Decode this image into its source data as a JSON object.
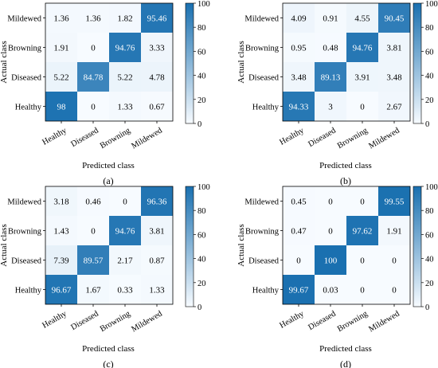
{
  "chart_data": [
    {
      "type": "heatmap",
      "panel_label": "(a)",
      "rows": [
        "Mildewed",
        "Browning",
        "Diseased",
        "Healthy"
      ],
      "columns": [
        "Healthy",
        "Diseased",
        "Browning",
        "Mildewed"
      ],
      "values": [
        [
          "1.36",
          "1.36",
          "1.82",
          "95.46"
        ],
        [
          "1.91",
          "0",
          "94.76",
          "3.33"
        ],
        [
          "5.22",
          "84.78",
          "5.22",
          "4.78"
        ],
        [
          "98",
          "0",
          "1.33",
          "0.67"
        ]
      ],
      "xlabel": "Predicted class",
      "ylabel": "Actual class",
      "colorbar": {
        "range": [
          0,
          100
        ],
        "ticks": [
          "0",
          "20",
          "40",
          "60",
          "80",
          "100"
        ]
      }
    },
    {
      "type": "heatmap",
      "panel_label": "(b)",
      "rows": [
        "Mildewed",
        "Browning",
        "Diseased",
        "Healthy"
      ],
      "columns": [
        "Healthy",
        "Diseased",
        "Browning",
        "Mildewed"
      ],
      "values": [
        [
          "4.09",
          "0.91",
          "4.55",
          "90.45"
        ],
        [
          "0.95",
          "0.48",
          "94.76",
          "3.81"
        ],
        [
          "3.48",
          "89.13",
          "3.91",
          "3.48"
        ],
        [
          "94.33",
          "3",
          "0",
          "2.67"
        ]
      ],
      "xlabel": "Predicted class",
      "ylabel": "Actual class",
      "colorbar": {
        "range": [
          0,
          100
        ],
        "ticks": [
          "0",
          "20",
          "40",
          "60",
          "80",
          "100"
        ]
      }
    },
    {
      "type": "heatmap",
      "panel_label": "(c)",
      "rows": [
        "Mildewed",
        "Browning",
        "Diseased",
        "Healthy"
      ],
      "columns": [
        "Healthy",
        "Diseased",
        "Browning",
        "Mildewed"
      ],
      "values": [
        [
          "3.18",
          "0.46",
          "0",
          "96.36"
        ],
        [
          "1.43",
          "0",
          "94.76",
          "3.81"
        ],
        [
          "7.39",
          "89.57",
          "2.17",
          "0.87"
        ],
        [
          "96.67",
          "1.67",
          "0.33",
          "1.33"
        ]
      ],
      "xlabel": "Predicted class",
      "ylabel": "Actual class",
      "colorbar": {
        "range": [
          0,
          100
        ],
        "ticks": [
          "0",
          "20",
          "40",
          "60",
          "80",
          "100"
        ]
      }
    },
    {
      "type": "heatmap",
      "panel_label": "(d)",
      "rows": [
        "Mildewed",
        "Browning",
        "Diseased",
        "Healthy"
      ],
      "columns": [
        "Healthy",
        "Diseased",
        "Browning",
        "Mildewed"
      ],
      "values": [
        [
          "0.45",
          "0",
          "0",
          "99.55"
        ],
        [
          "0.47",
          "0",
          "97.62",
          "1.91"
        ],
        [
          "0",
          "100",
          "0",
          "0"
        ],
        [
          "99.67",
          "0.03",
          "0",
          "0"
        ]
      ],
      "xlabel": "Predicted class",
      "ylabel": "Actual class",
      "colorbar": {
        "range": [
          0,
          100
        ],
        "ticks": [
          "0",
          "20",
          "40",
          "60",
          "80",
          "100"
        ]
      }
    }
  ],
  "colors": {
    "low": "#f7fbff",
    "high": "#1a70b0",
    "text_dark": "#000000",
    "text_light": "#ffffff"
  }
}
